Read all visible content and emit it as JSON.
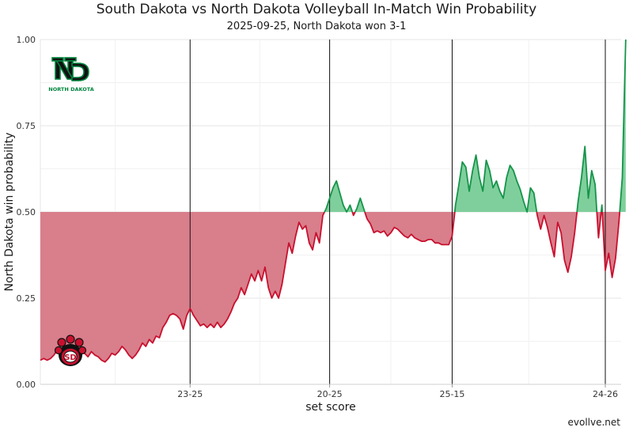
{
  "header": {
    "title": "South Dakota vs North Dakota Volleyball In-Match Win Probability",
    "subtitle": "2025-09-25, North Dakota won 3-1"
  },
  "credit": "evollve.net",
  "logos": {
    "north_dakota": "North Dakota logo",
    "north_dakota_text": "NORTH DAKOTA",
    "south_dakota": "South Dakota logo"
  },
  "colors": {
    "above": "#15944a",
    "above_fill": "#7fcf9c",
    "below": "#c8102e",
    "below_fill": "#d97e8b",
    "set_line": "#111111",
    "grid": "#e6e6e6"
  },
  "chart_data": {
    "type": "area",
    "title": "South Dakota vs North Dakota Volleyball In-Match Win Probability",
    "subtitle": "2025-09-25, North Dakota won 3-1",
    "xlabel": "set score",
    "ylabel": "North Dakota win probability",
    "ylim": [
      0,
      1
    ],
    "baseline": 0.5,
    "y_ticks": [
      "0.00",
      "0.25",
      "0.50",
      "0.75",
      "1.00"
    ],
    "y_tick_values": [
      0,
      0.25,
      0.5,
      0.75,
      1
    ],
    "xlim": [
      0,
      166
    ],
    "set_ends": [
      {
        "x": 44,
        "label": "23-25"
      },
      {
        "x": 85,
        "label": "20-25"
      },
      {
        "x": 121,
        "label": "25-15"
      },
      {
        "x": 166,
        "label": "24-26"
      }
    ],
    "grid": true,
    "series": [
      {
        "values": [
          0.07,
          0.075,
          0.07,
          0.075,
          0.085,
          0.1,
          0.1,
          0.09,
          0.08,
          0.085,
          0.07,
          0.08,
          0.09,
          0.09,
          0.08,
          0.095,
          0.085,
          0.08,
          0.07,
          0.065,
          0.075,
          0.09,
          0.085,
          0.095,
          0.11,
          0.1,
          0.085,
          0.075,
          0.085,
          0.1,
          0.12,
          0.11,
          0.13,
          0.12,
          0.14,
          0.135,
          0.165,
          0.18,
          0.2,
          0.205,
          0.2,
          0.19,
          0.16,
          0.2,
          0.22,
          0.2,
          0.185,
          0.17,
          0.175,
          0.165,
          0.175,
          0.165,
          0.18,
          0.165,
          0.175,
          0.19,
          0.21,
          0.235,
          0.25,
          0.28,
          0.26,
          0.29,
          0.32,
          0.3,
          0.33,
          0.3,
          0.34,
          0.28,
          0.25,
          0.27,
          0.25,
          0.29,
          0.35,
          0.41,
          0.38,
          0.43,
          0.47,
          0.45,
          0.46,
          0.41,
          0.39,
          0.44,
          0.41,
          0.49,
          0.51,
          0.54,
          0.57,
          0.59,
          0.555,
          0.52,
          0.5,
          0.52,
          0.49,
          0.51,
          0.54,
          0.51,
          0.48,
          0.465,
          0.44,
          0.445,
          0.44,
          0.445,
          0.43,
          0.44,
          0.455,
          0.45,
          0.44,
          0.43,
          0.425,
          0.435,
          0.425,
          0.42,
          0.415,
          0.415,
          0.42,
          0.42,
          0.41,
          0.41,
          0.405,
          0.405,
          0.405,
          0.43,
          0.52,
          0.58,
          0.645,
          0.63,
          0.56,
          0.62,
          0.665,
          0.6,
          0.56,
          0.65,
          0.62,
          0.57,
          0.59,
          0.56,
          0.54,
          0.6,
          0.635,
          0.62,
          0.59,
          0.565,
          0.53,
          0.5,
          0.57,
          0.555,
          0.49,
          0.45,
          0.49,
          0.455,
          0.41,
          0.37,
          0.47,
          0.44,
          0.36,
          0.325,
          0.37,
          0.44,
          0.53,
          0.6,
          0.69,
          0.54,
          0.62,
          0.58,
          0.425,
          0.52,
          0.33,
          0.38,
          0.31,
          0.365,
          0.47,
          0.6,
          1.0
        ]
      }
    ]
  }
}
